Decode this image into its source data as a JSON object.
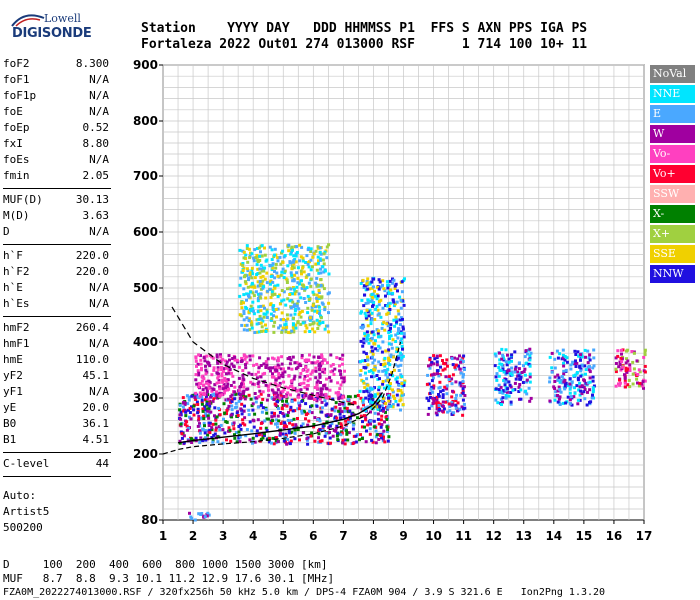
{
  "logo": {
    "line1": "Lowell",
    "line2": "DIGISONDE"
  },
  "header": {
    "row1": "Station    YYYY DAY   DDD HHMMSS P1  FFS S AXN PPS IGA PS",
    "row2": "Fortaleza 2022 Out01 274 013000 RSF      1 714 100 10+ 11"
  },
  "params": [
    [
      {
        "k": "foF2",
        "v": "8.300"
      },
      {
        "k": "foF1",
        "v": "N/A"
      },
      {
        "k": "foF1p",
        "v": "N/A"
      },
      {
        "k": "foE",
        "v": "N/A"
      },
      {
        "k": "foEp",
        "v": "0.52"
      },
      {
        "k": "fxI",
        "v": "8.80"
      },
      {
        "k": "foEs",
        "v": "N/A"
      },
      {
        "k": "fmin",
        "v": "2.05"
      }
    ],
    [
      {
        "k": "MUF(D)",
        "v": "30.13"
      },
      {
        "k": "M(D)",
        "v": "3.63"
      },
      {
        "k": "D",
        "v": "N/A"
      }
    ],
    [
      {
        "k": "h`F",
        "v": "220.0"
      },
      {
        "k": "h`F2",
        "v": "220.0"
      },
      {
        "k": "h`E",
        "v": "N/A"
      },
      {
        "k": "h`Es",
        "v": "N/A"
      }
    ],
    [
      {
        "k": "hmF2",
        "v": "260.4"
      },
      {
        "k": "hmF1",
        "v": "N/A"
      },
      {
        "k": "hmE",
        "v": "110.0"
      },
      {
        "k": "yF2",
        "v": "45.1"
      },
      {
        "k": "yF1",
        "v": "N/A"
      },
      {
        "k": "yE",
        "v": "20.0"
      },
      {
        "k": "B0",
        "v": "36.1"
      },
      {
        "k": "B1",
        "v": "4.51"
      }
    ],
    [
      {
        "k": "C-level",
        "v": "44"
      }
    ]
  ],
  "auto": [
    "Auto:",
    "Artist5",
    "500200"
  ],
  "legend": [
    {
      "name": "NoVal",
      "color": "#808080"
    },
    {
      "name": "NNE",
      "color": "#00e5ff"
    },
    {
      "name": "E",
      "color": "#4aa8ff"
    },
    {
      "name": "W",
      "color": "#a000a0"
    },
    {
      "name": "Vo-",
      "color": "#ff40c0"
    },
    {
      "name": "Vo+",
      "color": "#ff0030"
    },
    {
      "name": "SSW",
      "color": "#ffb0b0"
    },
    {
      "name": "X-",
      "color": "#008000"
    },
    {
      "name": "X+",
      "color": "#a0d040"
    },
    {
      "name": "SSE",
      "color": "#f0d000"
    },
    {
      "name": "NNW",
      "color": "#2010e0"
    }
  ],
  "footer": {
    "d_row": "D     100  200  400  600  800 1000 1500 3000 [km]",
    "muf_row": "MUF   8.7  8.8  9.3 10.1 11.2 12.9 17.6 30.1 [MHz]",
    "info": "FZA0M_2022274013000.RSF / 320fx256h 50 kHz 5.0 km / DPS-4 FZA0M 904 / 3.9 S 321.6 E   Ion2Png 1.3.20"
  },
  "chart_data": {
    "type": "scatter",
    "title": "",
    "xlabel": "",
    "ylabel": "",
    "xlim": [
      1,
      17
    ],
    "ylim": [
      80,
      900
    ],
    "x_ticks": [
      "1",
      "2",
      "3",
      "4",
      "5",
      "6",
      "7",
      "8",
      "9",
      "10",
      "11",
      "12",
      "13",
      "14",
      "15",
      "16",
      "17"
    ],
    "y_ticks": [
      "80",
      "200",
      "300",
      "400",
      "500",
      "600",
      "700",
      "800",
      "900"
    ],
    "y_tick_values": [
      80,
      200,
      300,
      400,
      500,
      600,
      700,
      800,
      900
    ],
    "grid": true,
    "legend_position": "right",
    "ordinary_trace": [
      [
        1.5,
        220
      ],
      [
        2,
        224
      ],
      [
        3,
        230
      ],
      [
        4,
        236
      ],
      [
        5,
        243
      ],
      [
        6,
        250
      ],
      [
        7,
        262
      ],
      [
        7.5,
        272
      ],
      [
        8,
        288
      ],
      [
        8.3,
        310
      ]
    ],
    "model_profile": [
      [
        1.0,
        200
      ],
      [
        1.5,
        208
      ],
      [
        2,
        213
      ],
      [
        3,
        218
      ],
      [
        4,
        222
      ],
      [
        5,
        228
      ],
      [
        6,
        236
      ],
      [
        7,
        250
      ],
      [
        7.8,
        270
      ],
      [
        8.3,
        300
      ],
      [
        8.6,
        340
      ],
      [
        8.9,
        400
      ]
    ],
    "extraordinary_curve": [
      [
        1.3,
        465
      ],
      [
        2,
        400
      ],
      [
        3,
        360
      ],
      [
        4,
        335
      ],
      [
        5,
        318
      ],
      [
        6,
        305
      ],
      [
        7,
        292
      ],
      [
        7.5,
        286
      ]
    ],
    "echo_clusters": [
      {
        "x": [
          1.5,
          8.5
        ],
        "y": [
          220,
          310
        ],
        "colors": [
          "#ff0030",
          "#a000a0",
          "#2010e0",
          "#008000",
          "#4aa8ff"
        ]
      },
      {
        "x": [
          2,
          7
        ],
        "y": [
          300,
          380
        ],
        "colors": [
          "#a000a0",
          "#ff40c0"
        ]
      },
      {
        "x": [
          3.5,
          6.5
        ],
        "y": [
          420,
          580
        ],
        "colors": [
          "#4aa8ff",
          "#00e5ff",
          "#f0d000",
          "#a0d040"
        ]
      },
      {
        "x": [
          7.5,
          9
        ],
        "y": [
          280,
          520
        ],
        "colors": [
          "#4aa8ff",
          "#2010e0",
          "#00e5ff",
          "#f0d000"
        ]
      },
      {
        "x": [
          9.7,
          11
        ],
        "y": [
          270,
          380
        ],
        "colors": [
          "#2010e0",
          "#ff0030",
          "#4aa8ff",
          "#a000a0"
        ]
      },
      {
        "x": [
          12,
          13.2
        ],
        "y": [
          290,
          390
        ],
        "colors": [
          "#2010e0",
          "#a000a0",
          "#4aa8ff",
          "#00e5ff"
        ]
      },
      {
        "x": [
          13.8,
          15.3
        ],
        "y": [
          290,
          390
        ],
        "colors": [
          "#2010e0",
          "#a000a0",
          "#4aa8ff",
          "#00e5ff"
        ]
      },
      {
        "x": [
          16,
          17
        ],
        "y": [
          320,
          390
        ],
        "colors": [
          "#ff40c0",
          "#a000a0",
          "#ff0030",
          "#a0d040"
        ]
      },
      {
        "x": [
          1.5,
          2.5
        ],
        "y": [
          82,
          95
        ],
        "colors": [
          "#a000a0",
          "#4aa8ff"
        ]
      }
    ]
  }
}
